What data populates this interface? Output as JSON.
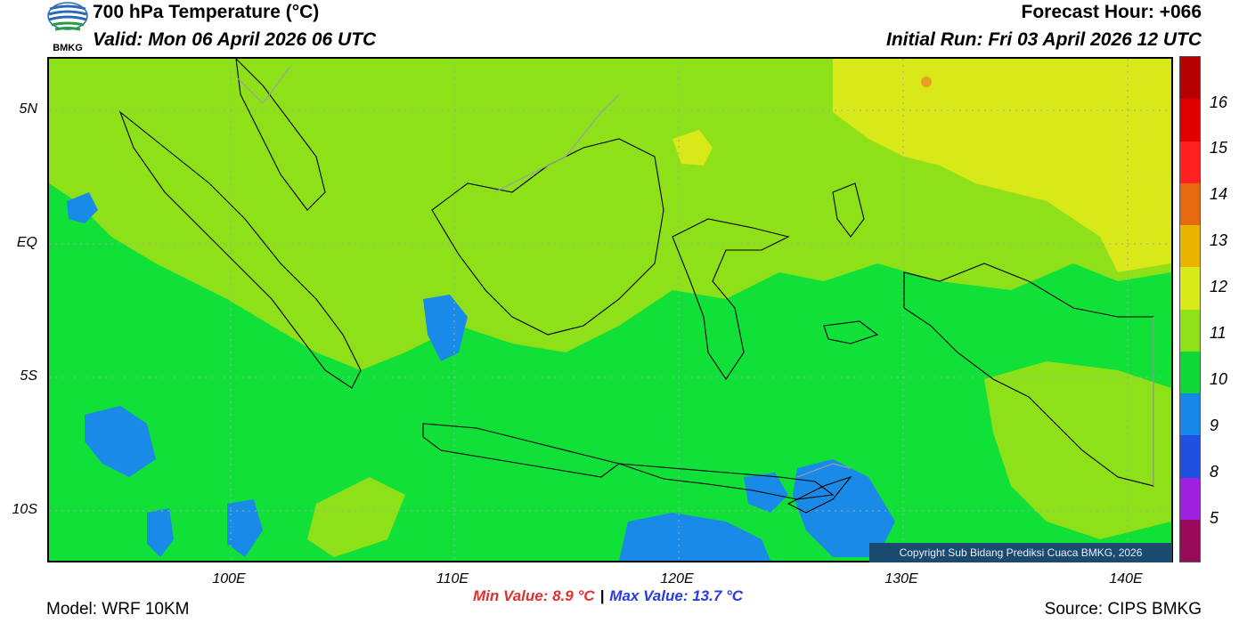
{
  "header": {
    "title": "700 hPa Temperature (°C)",
    "valid": "Valid: Mon 06 April 2026 06 UTC",
    "forecast_hour": "Forecast Hour: +066",
    "initial_run": "Initial Run: Fri 03 April 2026 12 UTC",
    "logo_text": "BMKG"
  },
  "axes": {
    "lat_labels": [
      "5N",
      "EQ",
      "5S",
      "10S"
    ],
    "lon_labels": [
      "100E",
      "110E",
      "120E",
      "130E",
      "140E"
    ]
  },
  "colorbar": {
    "labels": [
      "16",
      "15",
      "14",
      "13",
      "12",
      "11",
      "10",
      "9",
      "8",
      "5"
    ],
    "colors": [
      "#b40000",
      "#e00000",
      "#ff2020",
      "#e86a10",
      "#e8b400",
      "#d8e818",
      "#8ee018",
      "#10d838",
      "#1888e8",
      "#2050e0",
      "#a020e0",
      "#9a0a5a"
    ]
  },
  "map_colors": {
    "level_12": "#8ee018",
    "level_11": "#10e038",
    "level_13": "#d8e818",
    "level_10": "#1a8ae8",
    "level_14": "#e8b020"
  },
  "stats": {
    "min": "Min Value: 8.9 °C",
    "separator": "|",
    "max": "Max Value: 13.7 °C"
  },
  "footer": {
    "model": "Model: WRF 10KM",
    "source": "Source: CIPS BMKG",
    "copyright": "Copyright Sub Bidang Prediksi Cuaca BMKG, 2026"
  }
}
